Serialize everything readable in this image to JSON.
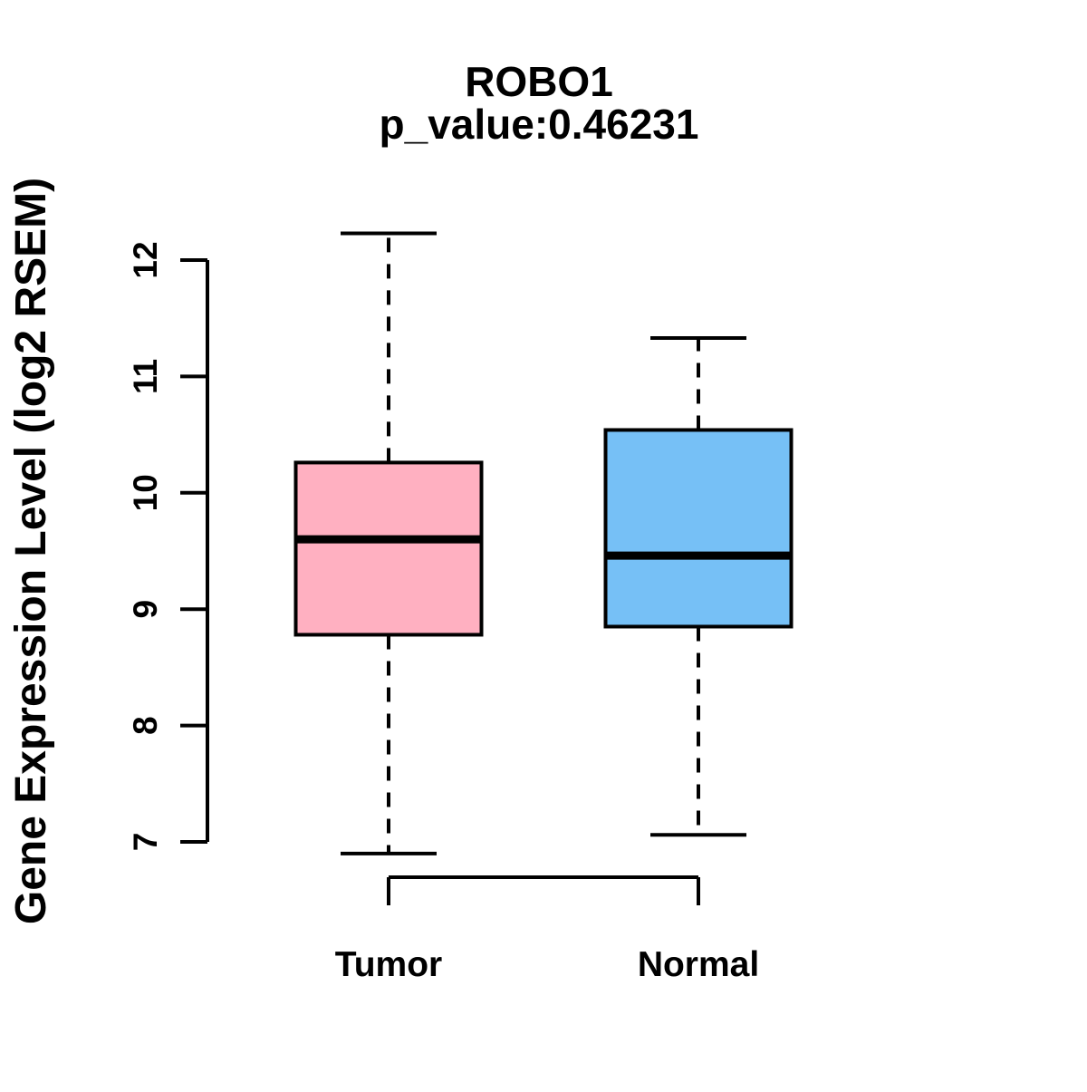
{
  "page": {
    "background_color": "#FFFFFF",
    "text_color": "#000000"
  },
  "chart_data": {
    "type": "boxplot",
    "title": "ROBO1",
    "subtitle": "p_value:0.46231",
    "xlabel": "",
    "ylabel": "Gene Expression Level (log2 RSEM)",
    "ylim": [
      6.9,
      12.3
    ],
    "yticks": [
      7,
      8,
      9,
      10,
      11,
      12
    ],
    "grid": false,
    "legend": "none",
    "categories": [
      "Tumor",
      "Normal"
    ],
    "series": [
      {
        "name": "Tumor",
        "box_color": "#FFB0C1",
        "lower_whisker": 6.9,
        "q1": 8.78,
        "median": 9.6,
        "q3": 10.26,
        "upper_whisker": 12.23
      },
      {
        "name": "Normal",
        "box_color": "#76C0F6",
        "lower_whisker": 7.06,
        "q1": 8.85,
        "median": 9.46,
        "q3": 10.54,
        "upper_whisker": 11.33
      }
    ],
    "border_color": "#000000",
    "median_color": "#000000",
    "whisker_style": "dashed"
  }
}
